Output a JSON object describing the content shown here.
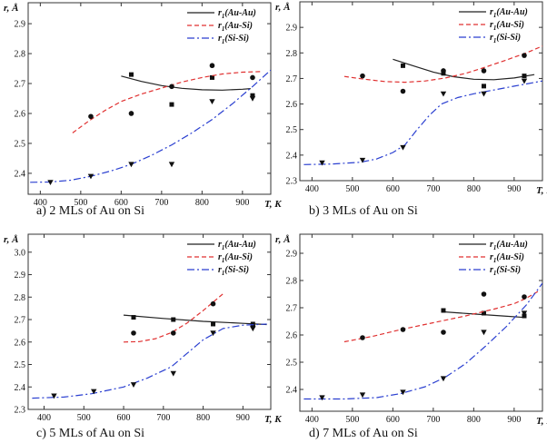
{
  "chart_data": [
    {
      "type": "scatter",
      "caption": "a) 2 MLs of Au on Si",
      "ylabel": "r, Å",
      "xlabel": "T, K",
      "xlim": [
        370,
        970
      ],
      "ylim": [
        2.33,
        2.97
      ],
      "xticks": [
        400,
        500,
        600,
        700,
        800,
        900
      ],
      "yticks": [
        2.4,
        2.5,
        2.6,
        2.7,
        2.8,
        2.9
      ],
      "legend": {
        "position": "top-right"
      },
      "series": [
        {
          "name": "r1(Au-Au)",
          "line": "solid",
          "color": "#222222",
          "marker": "square",
          "curve_x": [
            600,
            650,
            700,
            750,
            800,
            850,
            900,
            920
          ],
          "curve_y": [
            2.725,
            2.707,
            2.693,
            2.684,
            2.679,
            2.678,
            2.681,
            2.683
          ],
          "points_x": [
            625,
            725,
            825,
            925
          ],
          "points_y": [
            2.73,
            2.63,
            2.72,
            2.66
          ]
        },
        {
          "name": "r1(Au-Si)",
          "line": "dashed",
          "color": "#e03030",
          "marker": "circle",
          "curve_x": [
            480,
            520,
            560,
            600,
            650,
            700,
            750,
            800,
            850,
            900,
            950
          ],
          "curve_y": [
            2.535,
            2.575,
            2.61,
            2.64,
            2.665,
            2.685,
            2.705,
            2.72,
            2.732,
            2.738,
            2.74
          ],
          "points_x": [
            525,
            625,
            725,
            825,
            925
          ],
          "points_y": [
            2.59,
            2.6,
            2.69,
            2.76,
            2.72
          ]
        },
        {
          "name": "r1(Si-Si)",
          "line": "dashdot",
          "color": "#2a3fd0",
          "marker": "triangle-down",
          "curve_x": [
            375,
            425,
            475,
            525,
            575,
            625,
            675,
            725,
            775,
            825,
            875,
            925,
            970
          ],
          "curve_y": [
            2.37,
            2.371,
            2.377,
            2.39,
            2.408,
            2.43,
            2.46,
            2.495,
            2.535,
            2.58,
            2.632,
            2.69,
            2.745
          ],
          "points_x": [
            425,
            525,
            625,
            725,
            825,
            925
          ],
          "points_y": [
            2.37,
            2.39,
            2.43,
            2.43,
            2.64,
            2.65
          ]
        }
      ]
    },
    {
      "type": "scatter",
      "caption": "b) 3 MLs of Au on Si",
      "ylabel": "r, Å",
      "xlabel": "T, K",
      "xlim": [
        370,
        970
      ],
      "ylim": [
        2.3,
        3.0
      ],
      "xticks": [
        400,
        500,
        600,
        700,
        800,
        900
      ],
      "yticks": [
        2.3,
        2.4,
        2.5,
        2.6,
        2.7,
        2.8,
        2.9
      ],
      "legend": {
        "position": "top-right"
      },
      "series": [
        {
          "name": "r1(Au-Au)",
          "line": "solid",
          "color": "#222222",
          "marker": "square",
          "curve_x": [
            600,
            650,
            700,
            750,
            800,
            850,
            900,
            950
          ],
          "curve_y": [
            2.775,
            2.75,
            2.725,
            2.707,
            2.697,
            2.695,
            2.702,
            2.715
          ],
          "points_x": [
            625,
            725,
            825,
            925
          ],
          "points_y": [
            2.75,
            2.72,
            2.67,
            2.71
          ]
        },
        {
          "name": "r1(Au-Si)",
          "line": "dashed",
          "color": "#e03030",
          "marker": "circle",
          "curve_x": [
            480,
            530,
            580,
            630,
            680,
            730,
            780,
            830,
            880,
            930,
            975
          ],
          "curve_y": [
            2.708,
            2.697,
            2.688,
            2.685,
            2.69,
            2.702,
            2.72,
            2.745,
            2.772,
            2.8,
            2.83
          ],
          "points_x": [
            525,
            625,
            725,
            825,
            925
          ],
          "points_y": [
            2.71,
            2.65,
            2.73,
            2.73,
            2.79
          ]
        },
        {
          "name": "r1(Si-Si)",
          "line": "dashdot",
          "color": "#2a3fd0",
          "marker": "triangle-down",
          "curve_x": [
            380,
            450,
            520,
            560,
            600,
            630,
            660,
            690,
            720,
            760,
            800,
            850,
            900,
            970
          ],
          "curve_y": [
            2.363,
            2.365,
            2.372,
            2.385,
            2.41,
            2.44,
            2.5,
            2.555,
            2.6,
            2.625,
            2.64,
            2.655,
            2.67,
            2.69
          ],
          "points_x": [
            425,
            525,
            625,
            725,
            825,
            925
          ],
          "points_y": [
            2.37,
            2.38,
            2.43,
            2.64,
            2.64,
            2.69
          ]
        }
      ]
    },
    {
      "type": "scatter",
      "caption": "c) 5 MLs of Au on Si",
      "ylabel": "r, Å",
      "xlabel": "T, K",
      "xlim": [
        360,
        970
      ],
      "ylim": [
        2.3,
        3.08
      ],
      "xticks": [
        400,
        500,
        600,
        700,
        800,
        900
      ],
      "yticks": [
        2.3,
        2.4,
        2.5,
        2.6,
        2.7,
        2.8,
        2.9,
        3.0
      ],
      "legend": {
        "position": "top-right"
      },
      "series": [
        {
          "name": "r1(Au-Au)",
          "line": "solid",
          "color": "#222222",
          "marker": "square",
          "curve_x": [
            600,
            700,
            800,
            900,
            960
          ],
          "curve_y": [
            2.72,
            2.705,
            2.692,
            2.683,
            2.678
          ],
          "points_x": [
            625,
            725,
            825,
            925
          ],
          "points_y": [
            2.71,
            2.7,
            2.68,
            2.68
          ]
        },
        {
          "name": "r1(Au-Si)",
          "line": "dashed",
          "color": "#e03030",
          "marker": "circle",
          "curve_x": [
            600,
            640,
            680,
            720,
            760,
            800,
            850
          ],
          "curve_y": [
            2.6,
            2.602,
            2.615,
            2.642,
            2.685,
            2.74,
            2.815
          ],
          "points_x": [
            625,
            725,
            825,
            925
          ],
          "points_y": [
            2.64,
            2.64,
            2.77,
            2.67
          ]
        },
        {
          "name": "r1(Si-Si)",
          "line": "dashdot",
          "color": "#2a3fd0",
          "marker": "triangle-down",
          "curve_x": [
            370,
            450,
            520,
            600,
            660,
            720,
            760,
            800,
            850,
            900,
            960
          ],
          "curve_y": [
            2.35,
            2.355,
            2.37,
            2.4,
            2.44,
            2.49,
            2.55,
            2.61,
            2.66,
            2.675,
            2.68
          ],
          "points_x": [
            425,
            525,
            625,
            725,
            825,
            925
          ],
          "points_y": [
            2.36,
            2.38,
            2.41,
            2.46,
            2.64,
            2.66
          ]
        }
      ]
    },
    {
      "type": "scatter",
      "caption": "d) 7 MLs of Au on Si",
      "ylabel": "r, Å",
      "xlabel": "T, K",
      "xlim": [
        370,
        970
      ],
      "ylim": [
        2.32,
        2.97
      ],
      "xticks": [
        400,
        500,
        600,
        700,
        800,
        900
      ],
      "yticks": [
        2.4,
        2.5,
        2.6,
        2.7,
        2.8,
        2.9
      ],
      "legend": {
        "position": "top-right"
      },
      "series": [
        {
          "name": "r1(Au-Au)",
          "line": "solid",
          "color": "#222222",
          "marker": "square",
          "curve_x": [
            725,
            800,
            870,
            930
          ],
          "curve_y": [
            2.685,
            2.677,
            2.67,
            2.664
          ],
          "points_x": [
            725,
            825,
            925
          ],
          "points_y": [
            2.69,
            2.68,
            2.67
          ]
        },
        {
          "name": "r1(Au-Si)",
          "line": "dashed",
          "color": "#e03030",
          "marker": "circle",
          "curve_x": [
            480,
            550,
            620,
            700,
            780,
            850,
            900,
            930,
            965
          ],
          "curve_y": [
            2.575,
            2.595,
            2.62,
            2.645,
            2.67,
            2.695,
            2.715,
            2.735,
            2.765
          ],
          "points_x": [
            525,
            625,
            725,
            825,
            925
          ],
          "points_y": [
            2.59,
            2.62,
            2.61,
            2.75,
            2.74
          ]
        },
        {
          "name": "r1(Si-Si)",
          "line": "dashdot",
          "color": "#2a3fd0",
          "marker": "triangle-down",
          "curve_x": [
            380,
            480,
            560,
            620,
            680,
            730,
            780,
            830,
            880,
            930,
            970
          ],
          "curve_y": [
            2.365,
            2.365,
            2.37,
            2.385,
            2.41,
            2.445,
            2.495,
            2.56,
            2.63,
            2.71,
            2.79
          ],
          "points_x": [
            425,
            525,
            625,
            725,
            825,
            925
          ],
          "points_y": [
            2.37,
            2.38,
            2.39,
            2.44,
            2.61,
            2.68
          ]
        }
      ]
    }
  ]
}
